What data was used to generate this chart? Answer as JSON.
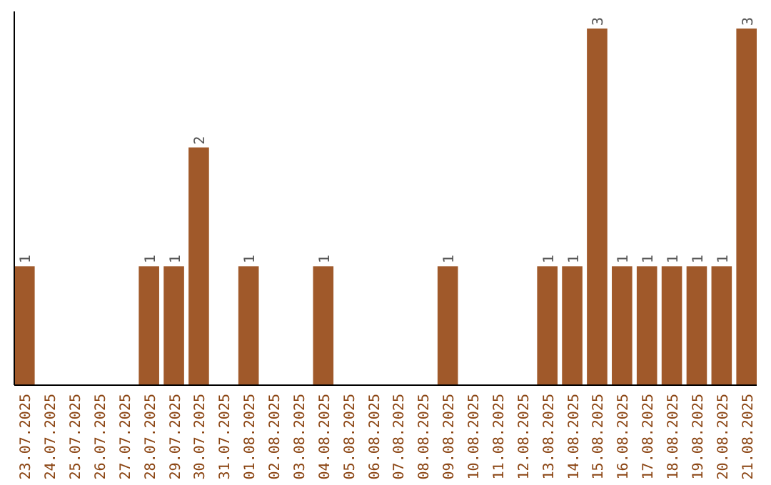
{
  "chart_data": {
    "type": "bar",
    "categories": [
      "23.07.2025",
      "24.07.2025",
      "25.07.2025",
      "26.07.2025",
      "27.07.2025",
      "28.07.2025",
      "29.07.2025",
      "30.07.2025",
      "31.07.2025",
      "01.08.2025",
      "02.08.2025",
      "03.08.2025",
      "04.08.2025",
      "05.08.2025",
      "06.08.2025",
      "07.08.2025",
      "08.08.2025",
      "09.08.2025",
      "10.08.2025",
      "11.08.2025",
      "12.08.2025",
      "13.08.2025",
      "14.08.2025",
      "15.08.2025",
      "16.08.2025",
      "17.08.2025",
      "18.08.2025",
      "19.08.2025",
      "20.08.2025",
      "21.08.2025"
    ],
    "values": [
      1,
      0,
      0,
      0,
      0,
      1,
      1,
      2,
      0,
      1,
      0,
      0,
      1,
      0,
      0,
      0,
      0,
      1,
      0,
      0,
      0,
      1,
      1,
      3,
      1,
      1,
      1,
      1,
      1,
      3
    ],
    "value_labels": [
      "1",
      null,
      null,
      null,
      null,
      "1",
      "1",
      "2",
      null,
      "1",
      null,
      null,
      "1",
      null,
      null,
      null,
      null,
      "1",
      null,
      null,
      null,
      "1",
      "1",
      "3",
      "1",
      "1",
      "1",
      "1",
      "1",
      "3"
    ],
    "color": "#a0592a",
    "tick_labels": "x"
  }
}
